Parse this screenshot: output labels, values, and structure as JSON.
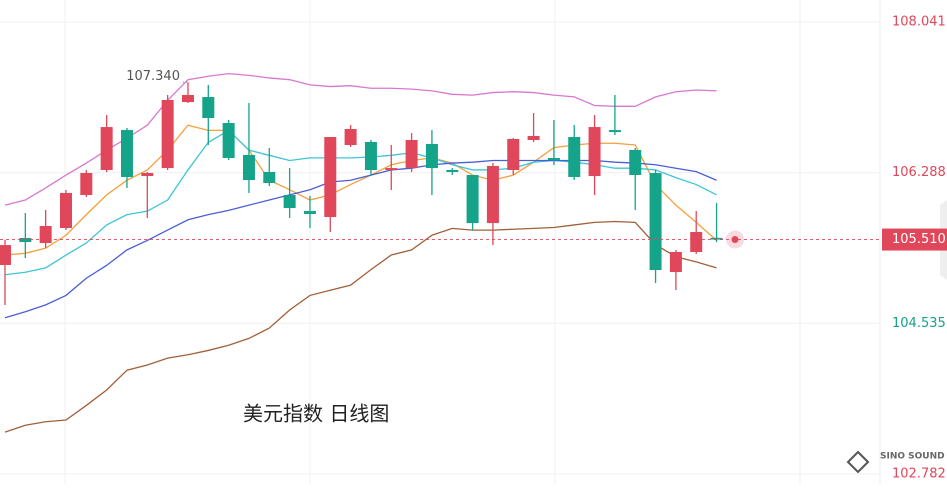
{
  "chart_data": {
    "type": "candlestick",
    "title": "美元指数 日线图",
    "watermark": "SINO SOUND",
    "ylim": [
      102.666,
      108.297
    ],
    "yticks": [
      108.041,
      106.288,
      104.535,
      102.782
    ],
    "ytick_colors": [
      "#e0475a",
      "#e0475a",
      "#15a38a",
      "#e0475a"
    ],
    "grid": true,
    "up_color": "#e0475a",
    "down_color": "#15a38a",
    "open": [
      105.214,
      105.528,
      105.47,
      105.644,
      106.028,
      106.319,
      106.784,
      106.249,
      106.342,
      107.11,
      107.168,
      106.866,
      106.494,
      106.296,
      106.028,
      105.842,
      105.772,
      106.61,
      106.645,
      106.319,
      106.342,
      106.622,
      106.319,
      106.261,
      105.702,
      106.319,
      106.668,
      106.459,
      106.703,
      106.249,
      106.784,
      106.552,
      106.284,
      105.132,
      105.365,
      105.53
    ],
    "high": [
      105.505,
      105.819,
      105.854,
      106.086,
      106.319,
      106.959,
      106.808,
      106.296,
      107.192,
      107.34,
      107.308,
      106.901,
      107.099,
      106.575,
      106.342,
      106.017,
      106.703,
      106.843,
      106.668,
      106.61,
      106.75,
      106.784,
      106.342,
      106.261,
      106.401,
      106.691,
      106.982,
      106.901,
      106.843,
      106.959,
      107.192,
      106.575,
      106.319,
      105.388,
      105.842,
      105.935
    ],
    "low": [
      104.748,
      105.295,
      105.412,
      105.621,
      106.005,
      106.296,
      106.11,
      105.761,
      106.319,
      107.099,
      106.61,
      106.435,
      106.052,
      106.133,
      105.761,
      105.644,
      105.598,
      106.587,
      106.261,
      106.086,
      106.296,
      106.028,
      106.261,
      105.621,
      105.446,
      106.261,
      106.645,
      106.377,
      106.203,
      106.028,
      106.726,
      105.854,
      105.004,
      104.923,
      105.342,
      105.48
    ],
    "close": [
      105.446,
      105.481,
      105.668,
      106.052,
      106.284,
      106.819,
      106.238,
      106.284,
      107.134,
      107.192,
      106.924,
      106.459,
      106.203,
      106.168,
      105.877,
      105.807,
      106.703,
      106.796,
      106.319,
      106.342,
      106.668,
      106.342,
      106.296,
      105.702,
      106.366,
      106.68,
      106.715,
      106.435,
      106.238,
      106.819,
      106.761,
      106.261,
      105.156,
      105.365,
      105.598,
      105.51
    ],
    "series": [
      {
        "color": "#d977d0",
        "values": [
          105.91,
          105.97,
          106.11,
          106.26,
          106.4,
          106.55,
          106.69,
          106.84,
          107.13,
          107.37,
          107.41,
          107.44,
          107.42,
          107.39,
          107.37,
          107.31,
          107.29,
          107.3,
          107.27,
          107.27,
          107.26,
          107.24,
          107.2,
          107.19,
          107.22,
          107.23,
          107.22,
          107.19,
          107.17,
          107.07,
          107.06,
          107.06,
          107.17,
          107.23,
          107.25,
          107.24
        ]
      },
      {
        "color": "#f5a03c",
        "values": [
          105.33,
          105.35,
          105.41,
          105.56,
          105.8,
          106.03,
          106.2,
          106.32,
          106.55,
          106.84,
          106.78,
          106.78,
          106.55,
          106.2,
          106.09,
          105.97,
          106.03,
          106.15,
          106.26,
          106.38,
          106.43,
          106.46,
          106.4,
          106.26,
          106.2,
          106.26,
          106.41,
          106.58,
          106.61,
          106.63,
          106.63,
          106.61,
          106.15,
          105.91,
          105.71,
          105.5
        ]
      },
      {
        "color": "#3cc6d6",
        "values": [
          105.1,
          105.13,
          105.18,
          105.33,
          105.47,
          105.68,
          105.8,
          105.84,
          105.97,
          106.32,
          106.64,
          106.78,
          106.55,
          106.49,
          106.43,
          106.46,
          106.46,
          106.46,
          106.47,
          106.49,
          106.52,
          106.46,
          106.38,
          106.32,
          106.32,
          106.34,
          106.41,
          106.43,
          106.41,
          106.38,
          106.34,
          106.34,
          106.32,
          106.23,
          106.15,
          106.03
        ]
      },
      {
        "color": "#4a5fd6",
        "values": [
          104.6,
          104.67,
          104.75,
          104.86,
          105.06,
          105.21,
          105.39,
          105.5,
          105.62,
          105.74,
          105.8,
          105.85,
          105.91,
          105.97,
          106.03,
          106.09,
          106.18,
          106.2,
          106.26,
          106.32,
          106.34,
          106.38,
          106.4,
          106.41,
          106.43,
          106.43,
          106.43,
          106.43,
          106.43,
          106.43,
          106.41,
          106.4,
          106.38,
          106.34,
          106.3,
          106.2
        ]
      },
      {
        "color": "#a0603a",
        "values": [
          103.27,
          103.35,
          103.39,
          103.41,
          103.58,
          103.76,
          103.99,
          104.05,
          104.13,
          104.17,
          104.22,
          104.28,
          104.36,
          104.48,
          104.69,
          104.86,
          104.92,
          104.98,
          105.16,
          105.33,
          105.39,
          105.56,
          105.64,
          105.62,
          105.62,
          105.63,
          105.64,
          105.65,
          105.68,
          105.71,
          105.72,
          105.71,
          105.45,
          105.31,
          105.25,
          105.18
        ]
      }
    ],
    "current_price": {
      "value": 105.51,
      "label": "105.510"
    },
    "annotation": {
      "value": 107.34,
      "label": "107.340"
    }
  }
}
